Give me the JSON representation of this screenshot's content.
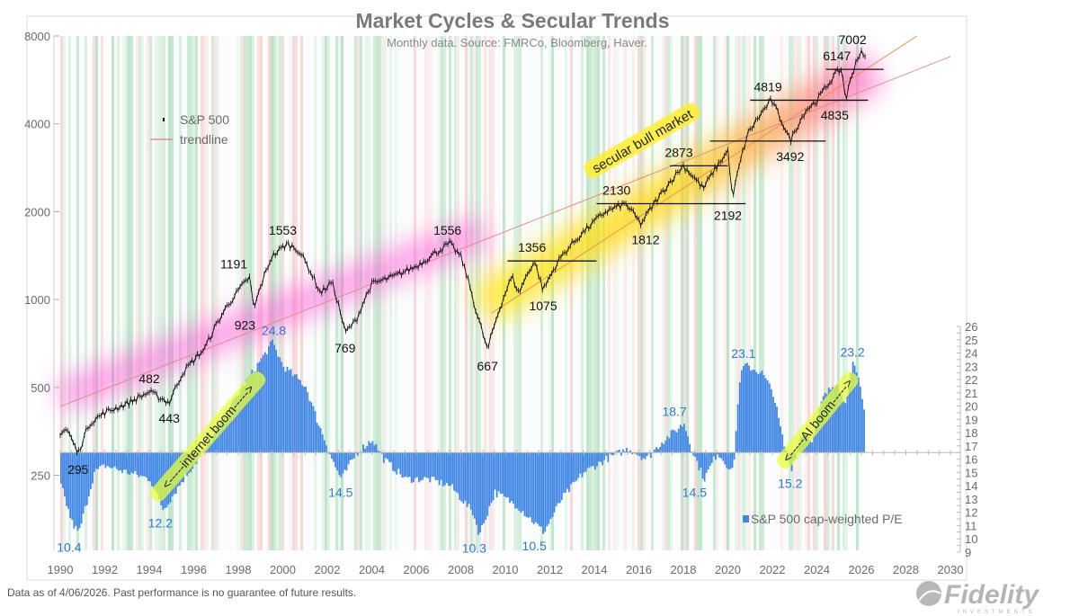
{
  "title": "Market Cycles & Secular Trends",
  "subtitle": "Monthly data.  Source: FMRCo, Bloomberg, Haver.",
  "footer": "Data as of 4/06/2026. Past performance is no guarantee of future results.",
  "logo": {
    "text": "Fidelity",
    "subtext": "INVESTMENTS"
  },
  "colors": {
    "sp500": "#111111",
    "pe_bars": "#3f86e6",
    "pe_labels": "#2f78d8",
    "trendline": "#e58a8a",
    "bull_stripe": "#5cbf7a",
    "bear_stripe": "#f08a8a",
    "glow_early": "#ff4fd8",
    "glow_late": "#ffe600"
  },
  "chart_data": {
    "type": "line+bar",
    "title": "Market Cycles & Secular Trends",
    "x_ticks": [
      "1990",
      "1992",
      "1994",
      "1996",
      "1998",
      "2000",
      "2002",
      "2004",
      "2006",
      "2008",
      "2010",
      "2012",
      "2014",
      "2016",
      "2018",
      "2020",
      "2022",
      "2024",
      "2026",
      "2028",
      "2030"
    ],
    "xlim": [
      1990,
      2030
    ],
    "left_axis": {
      "scale": "log",
      "ticks": [
        "8000",
        "4000",
        "2000",
        "1000",
        "500",
        "250"
      ],
      "ylim": [
        250,
        8000
      ]
    },
    "right_axis": {
      "ticks": [
        "26",
        "25",
        "24",
        "23",
        "22",
        "21",
        "20",
        "19",
        "18",
        "17",
        "16",
        "15",
        "14",
        "13",
        "12",
        "11",
        "10",
        "9"
      ],
      "ylim": [
        9,
        26
      ],
      "bar_baseline": 16.5
    },
    "legend": {
      "sp500": "S&P 500",
      "trendline": "trendline",
      "pe": "S&P 500 cap-weighted P/E"
    },
    "sp500_series": [
      [
        1990.0,
        350
      ],
      [
        1990.3,
        360
      ],
      [
        1990.8,
        295
      ],
      [
        1991.3,
        375
      ],
      [
        1992,
        410
      ],
      [
        1993,
        440
      ],
      [
        1994.0,
        482
      ],
      [
        1994.9,
        443
      ],
      [
        1995.5,
        560
      ],
      [
        1996.5,
        680
      ],
      [
        1997.5,
        950
      ],
      [
        1998.5,
        1191
      ],
      [
        1998.7,
        923
      ],
      [
        1999.5,
        1400
      ],
      [
        2000.2,
        1553
      ],
      [
        2000.7,
        1480
      ],
      [
        2001.7,
        1050
      ],
      [
        2002.2,
        1150
      ],
      [
        2002.8,
        769
      ],
      [
        2003.3,
        850
      ],
      [
        2004.0,
        1130
      ],
      [
        2005.0,
        1200
      ],
      [
        2006.0,
        1300
      ],
      [
        2007.5,
        1556
      ],
      [
        2008.0,
        1400
      ],
      [
        2008.7,
        900
      ],
      [
        2009.2,
        667
      ],
      [
        2010.3,
        1200
      ],
      [
        2010.6,
        1050
      ],
      [
        2011.3,
        1356
      ],
      [
        2011.7,
        1075
      ],
      [
        2012.5,
        1400
      ],
      [
        2013.5,
        1700
      ],
      [
        2014.5,
        2000
      ],
      [
        2015.4,
        2130
      ],
      [
        2016.1,
        1812
      ],
      [
        2017.0,
        2300
      ],
      [
        2018.0,
        2873
      ],
      [
        2018.9,
        2400
      ],
      [
        2020.0,
        3230
      ],
      [
        2020.2,
        2192
      ],
      [
        2020.9,
        3700
      ],
      [
        2021.95,
        4819
      ],
      [
        2022.8,
        3492
      ],
      [
        2023.5,
        4450
      ],
      [
        2024.0,
        4800
      ],
      [
        2024.9,
        6000
      ],
      [
        2025.1,
        6147
      ],
      [
        2025.3,
        4835
      ],
      [
        2025.8,
        6700
      ],
      [
        2026.0,
        7002
      ],
      [
        2026.2,
        6600
      ]
    ],
    "pe_series": [
      [
        1990.0,
        14
      ],
      [
        1990.5,
        11.2
      ],
      [
        1990.8,
        10.4
      ],
      [
        1991.5,
        15
      ],
      [
        1992.0,
        15.5
      ],
      [
        1993.0,
        15
      ],
      [
        1994.0,
        14.5
      ],
      [
        1994.6,
        12.2
      ],
      [
        1995.5,
        14.5
      ],
      [
        1996.5,
        16.8
      ],
      [
        1997.3,
        19
      ],
      [
        1998.0,
        21
      ],
      [
        1999.5,
        24.8
      ],
      [
        2000.0,
        23
      ],
      [
        2001.0,
        21.5
      ],
      [
        2001.5,
        19
      ],
      [
        2002.3,
        15.5
      ],
      [
        2002.6,
        14.5
      ],
      [
        2003.3,
        16.5
      ],
      [
        2004.0,
        17.5
      ],
      [
        2004.5,
        16
      ],
      [
        2005.5,
        14.5
      ],
      [
        2006.5,
        14.5
      ],
      [
        2007.5,
        14
      ],
      [
        2008.5,
        12
      ],
      [
        2008.8,
        10.3
      ],
      [
        2009.5,
        13.5
      ],
      [
        2010.5,
        12.5
      ],
      [
        2011.7,
        10.5
      ],
      [
        2012.5,
        13
      ],
      [
        2013.5,
        15
      ],
      [
        2014.5,
        16
      ],
      [
        2015.5,
        16.8
      ],
      [
        2016.3,
        16.0
      ],
      [
        2017.0,
        17.3
      ],
      [
        2018.0,
        18.7
      ],
      [
        2018.4,
        16.5
      ],
      [
        2018.9,
        14.5
      ],
      [
        2019.5,
        16.5
      ],
      [
        2020.2,
        15
      ],
      [
        2020.5,
        22
      ],
      [
        2020.7,
        23.1
      ],
      [
        2021.5,
        22.5
      ],
      [
        2022.0,
        21
      ],
      [
        2022.5,
        17
      ],
      [
        2022.8,
        15.2
      ],
      [
        2023.3,
        18
      ],
      [
        2023.8,
        17.5
      ],
      [
        2024.2,
        20.5
      ],
      [
        2024.9,
        22
      ],
      [
        2025.2,
        20
      ],
      [
        2025.6,
        23.2
      ],
      [
        2025.9,
        21.5
      ],
      [
        2026.1,
        19.5
      ]
    ],
    "trendlines": [
      {
        "name": "trendline",
        "from": [
          1990,
          430
        ],
        "to": [
          2030,
          6800
        ]
      },
      {
        "name": "secular-bull-trend",
        "from": [
          2009.4,
          900
        ],
        "to": [
          2028.5,
          8000
        ]
      }
    ],
    "support_levels": [
      {
        "value": 1356,
        "from": 2010.1,
        "to": 2014.1
      },
      {
        "value": 2130,
        "from": 2014.1,
        "to": 2020.8
      },
      {
        "value": 2873,
        "from": 2017.4,
        "to": 2020.0
      },
      {
        "value": 3492,
        "from": 2019.2,
        "to": 2024.4
      },
      {
        "value": 4819,
        "from": 2021.0,
        "to": 2026.3
      },
      {
        "value": 6147,
        "from": 2024.4,
        "to": 2027.0
      }
    ],
    "sp500_labels": [
      {
        "text": "295",
        "x": 1990.8,
        "v": 295,
        "pos": "below"
      },
      {
        "text": "482",
        "x": 1994.0,
        "v": 482,
        "pos": "above"
      },
      {
        "text": "443",
        "x": 1994.9,
        "v": 443,
        "pos": "below"
      },
      {
        "text": "1191",
        "x": 1997.8,
        "v": 1191,
        "pos": "above"
      },
      {
        "text": "923",
        "x": 1998.3,
        "v": 923,
        "pos": "below"
      },
      {
        "text": "1553",
        "x": 2000.0,
        "v": 1553,
        "pos": "above"
      },
      {
        "text": "769",
        "x": 2002.8,
        "v": 769,
        "pos": "below"
      },
      {
        "text": "1556",
        "x": 2007.4,
        "v": 1556,
        "pos": "above"
      },
      {
        "text": "667",
        "x": 2009.2,
        "v": 667,
        "pos": "below"
      },
      {
        "text": "1356",
        "x": 2011.2,
        "v": 1356,
        "pos": "above"
      },
      {
        "text": "1075",
        "x": 2011.7,
        "v": 1075,
        "pos": "below"
      },
      {
        "text": "2130",
        "x": 2015.0,
        "v": 2130,
        "pos": "above"
      },
      {
        "text": "1812",
        "x": 2016.3,
        "v": 1812,
        "pos": "below"
      },
      {
        "text": "2873",
        "x": 2017.8,
        "v": 2873,
        "pos": "above"
      },
      {
        "text": "2192",
        "x": 2020.0,
        "v": 2192,
        "pos": "below"
      },
      {
        "text": "3492",
        "x": 2022.8,
        "v": 3492,
        "pos": "below"
      },
      {
        "text": "4819",
        "x": 2021.8,
        "v": 4819,
        "pos": "above"
      },
      {
        "text": "4835",
        "x": 2024.8,
        "v": 4835,
        "pos": "below"
      },
      {
        "text": "6147",
        "x": 2024.9,
        "v": 6147,
        "pos": "above"
      },
      {
        "text": "7002",
        "x": 2025.6,
        "v": 7002,
        "pos": "above"
      }
    ],
    "pe_labels": [
      {
        "text": "10.4",
        "x": 1990.4,
        "v": 10.4,
        "pos": "below"
      },
      {
        "text": "12.2",
        "x": 1994.5,
        "v": 12.2,
        "pos": "below"
      },
      {
        "text": "24.8",
        "x": 1999.6,
        "v": 24.8,
        "pos": "above"
      },
      {
        "text": "14.5",
        "x": 2002.6,
        "v": 14.5,
        "pos": "below"
      },
      {
        "text": "10.3",
        "x": 2008.6,
        "v": 10.3,
        "pos": "below"
      },
      {
        "text": "10.5",
        "x": 2011.3,
        "v": 10.5,
        "pos": "below"
      },
      {
        "text": "18.7",
        "x": 2017.6,
        "v": 18.7,
        "pos": "above"
      },
      {
        "text": "14.5",
        "x": 2018.5,
        "v": 14.5,
        "pos": "below"
      },
      {
        "text": "23.1",
        "x": 2020.7,
        "v": 23.1,
        "pos": "above"
      },
      {
        "text": "15.2",
        "x": 2022.8,
        "v": 15.2,
        "pos": "below"
      },
      {
        "text": "23.2",
        "x": 2025.6,
        "v": 23.2,
        "pos": "above"
      }
    ],
    "annotations": {
      "bull": "secular bull market",
      "internet": "<-----internet boom----->",
      "ai": "<-----AI boom----->"
    }
  }
}
